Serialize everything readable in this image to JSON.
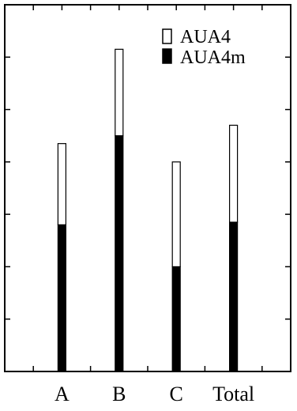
{
  "chart_data": {
    "type": "bar",
    "stacked": true,
    "categories": [
      "A",
      "B",
      "C",
      "Total"
    ],
    "series": [
      {
        "name": "AUA4m",
        "values": [
          2.8,
          4.5,
          2.0,
          2.85
        ],
        "color": "#000000"
      },
      {
        "name": "AUA4",
        "values": [
          1.55,
          1.65,
          2.0,
          1.85
        ],
        "color": "#ffffff"
      }
    ],
    "ylim": [
      0,
      7
    ],
    "y_tick_count": 7,
    "x_tick_count": 9,
    "y_tick_labels": false,
    "grid": false,
    "legend": {
      "position": "top-right",
      "items": [
        {
          "label": "AUA4",
          "color": "#ffffff"
        },
        {
          "label": "AUA4m",
          "color": "#000000"
        }
      ]
    }
  }
}
